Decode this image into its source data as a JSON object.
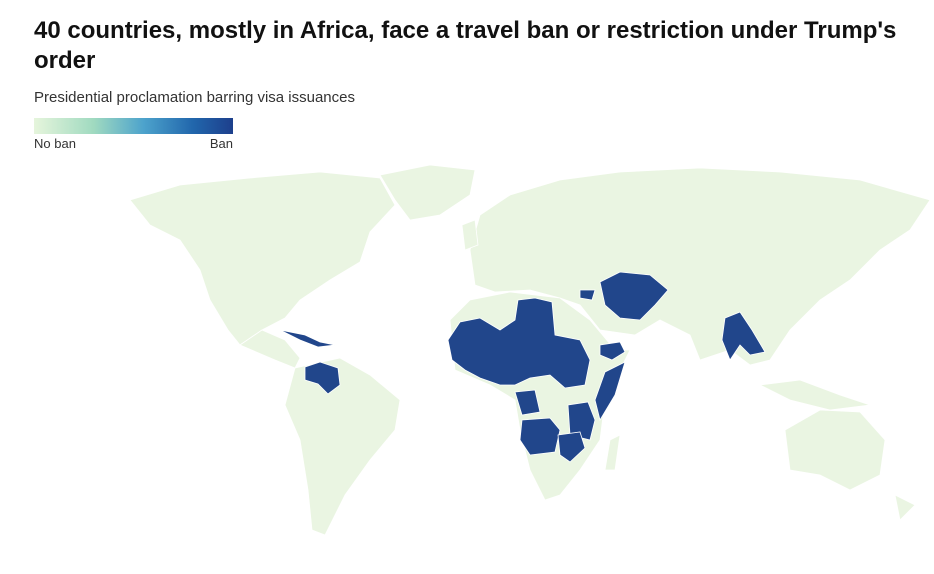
{
  "header": {
    "title": "40 countries, mostly in Africa, face a travel ban or restriction under Trump's order",
    "subtitle": "Presidential proclamation barring visa issuances"
  },
  "legend": {
    "low_label": "No ban",
    "high_label": "Ban"
  }
}
